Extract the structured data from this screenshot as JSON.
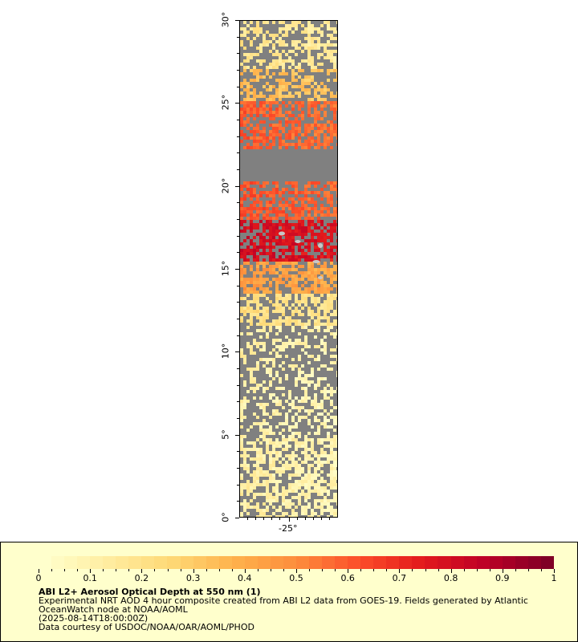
{
  "map": {
    "lat_ticks": [
      "0°",
      "5°",
      "10°",
      "15°",
      "20°",
      "25°",
      "30°"
    ],
    "lon_ticks": [
      "-25°"
    ],
    "land_color": "#808080",
    "nodata_color": "#c8c8c8"
  },
  "legend": {
    "title": "ABI L2+ Aerosol Optical Depth at 550 nm (1)",
    "line1": "Experimental NRT AOD 4 hour composite created from ABI L2 data from GOES-19. Fields generated by Atlantic OceanWatch node at NOAA/AOML",
    "line2": "(2025-08-14T18:00:00Z)",
    "line3": "Data courtesy of USDOC/NOAA/OAR/AOML/PHOD",
    "ticks": [
      "0",
      "0.1",
      "0.2",
      "0.3",
      "0.4",
      "0.5",
      "0.6",
      "0.7",
      "0.8",
      "0.9",
      "1"
    ],
    "range": [
      0,
      1
    ],
    "colors": [
      "#ffffcc",
      "#ffeda0",
      "#fed976",
      "#feb24c",
      "#fd8d3c",
      "#fc4e2a",
      "#e31a1c",
      "#bd0026",
      "#800026"
    ],
    "background": "#ffffcc"
  }
}
